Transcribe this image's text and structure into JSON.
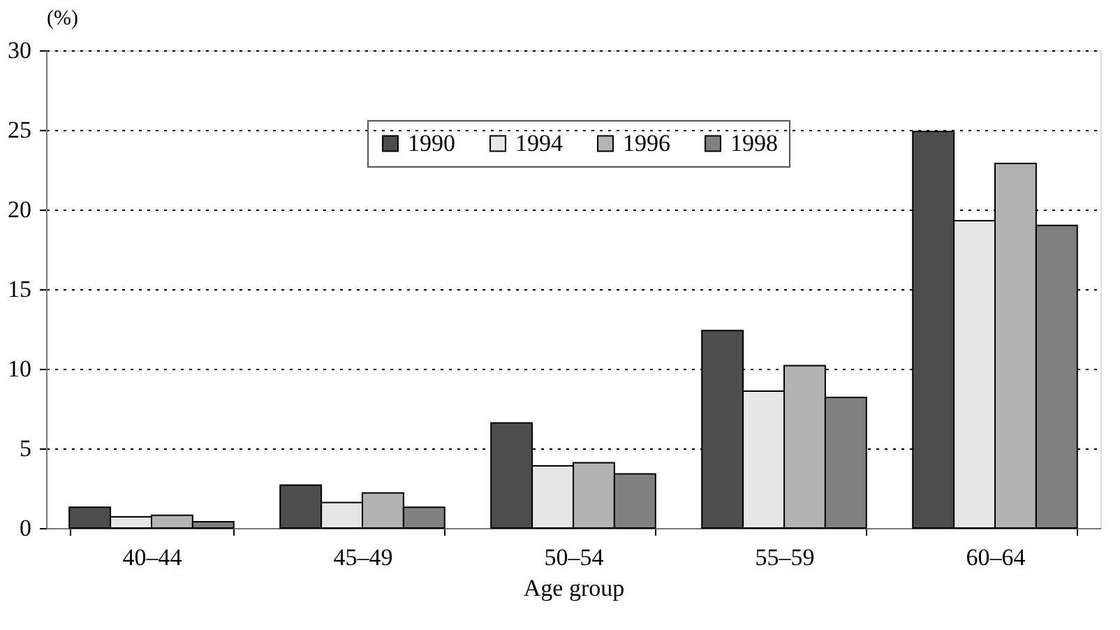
{
  "chart_data": {
    "type": "bar",
    "xlabel": "Age group",
    "ylabel": "(%)",
    "categories": [
      "40–44",
      "45–49",
      "50–54",
      "55–59",
      "60–64"
    ],
    "series": [
      {
        "name": "1990",
        "color": "#4d4d4d",
        "values": [
          1.3,
          2.7,
          6.6,
          12.4,
          24.9
        ]
      },
      {
        "name": "1994",
        "color": "#e6e6e6",
        "values": [
          0.7,
          1.6,
          3.9,
          8.6,
          19.3
        ]
      },
      {
        "name": "1996",
        "color": "#b3b3b3",
        "values": [
          0.8,
          2.2,
          4.1,
          10.2,
          22.9
        ]
      },
      {
        "name": "1998",
        "color": "#808080",
        "values": [
          0.4,
          1.3,
          3.4,
          8.2,
          19.0
        ]
      }
    ],
    "ylim": [
      0,
      30
    ],
    "yticks": [
      0,
      5,
      10,
      15,
      20,
      25,
      30
    ],
    "grid": "y",
    "legend": "top"
  }
}
